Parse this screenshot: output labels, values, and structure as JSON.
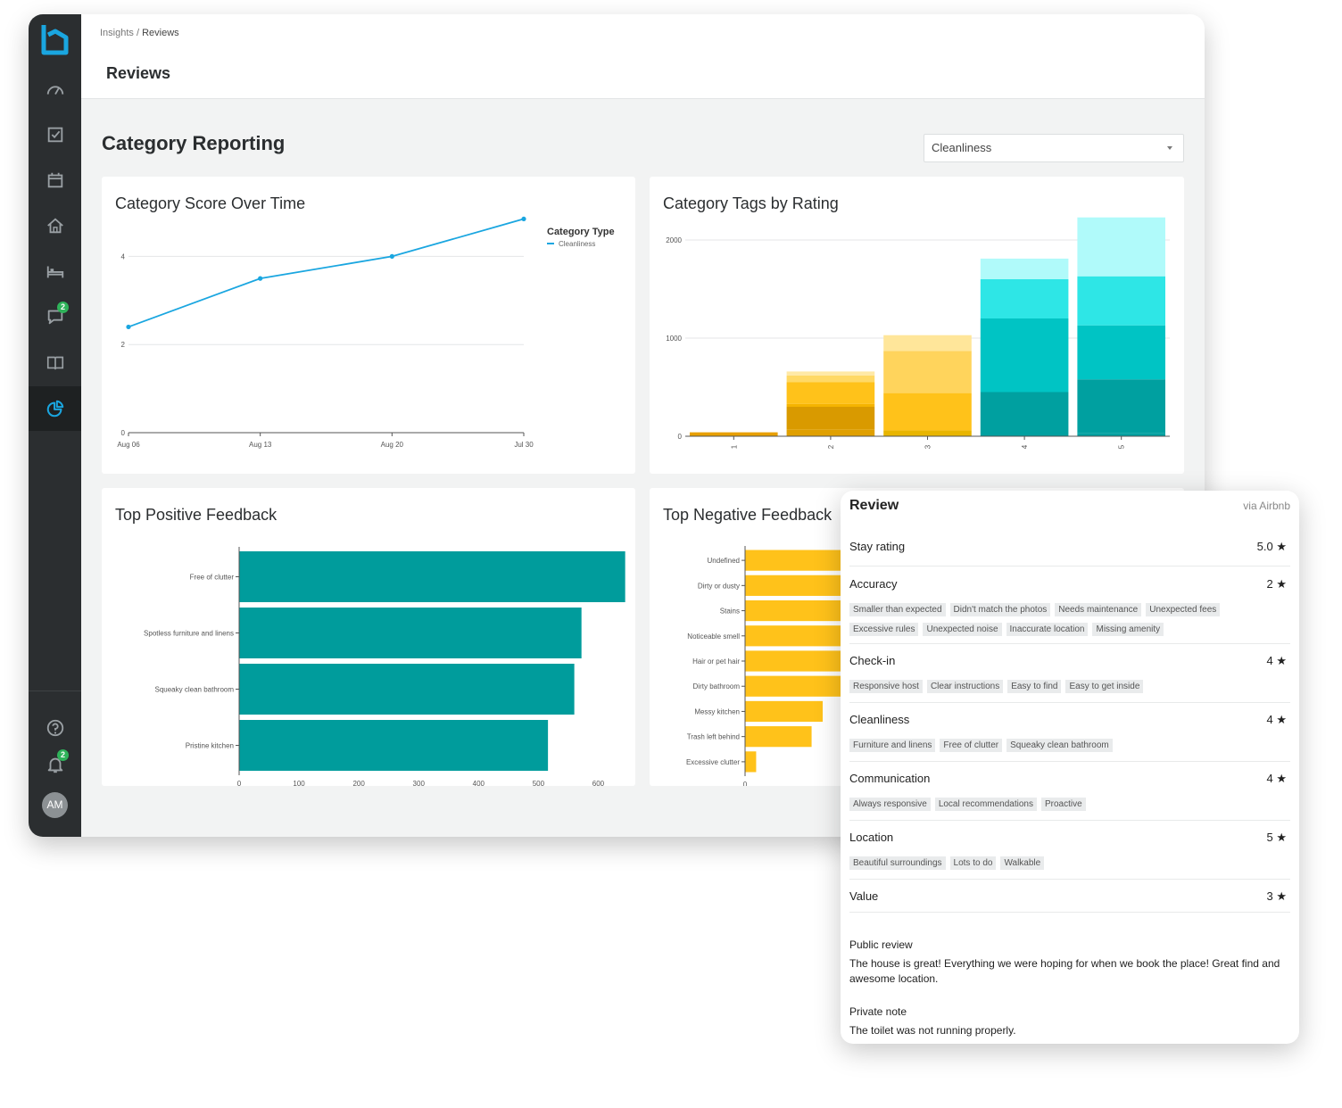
{
  "breadcrumb": {
    "parent": "Insights",
    "separator": " / ",
    "current": "Reviews"
  },
  "page_title": "Reviews",
  "section_title": "Category Reporting",
  "category_select": {
    "value": "Cleanliness"
  },
  "sidebar": {
    "icons": [
      "logo",
      "dashboard-gauge-icon",
      "tasks-checkbox-icon",
      "calendar-icon",
      "home-icon",
      "bed-icon",
      "messages-icon",
      "guidebook-icon",
      "insights-pie-icon",
      "help-icon",
      "notifications-bell-icon"
    ],
    "messages_badge": "2",
    "notifications_badge": "2",
    "avatar_initials": "AM"
  },
  "colors": {
    "accent": "#1aa6e0",
    "teal": "#009c9c",
    "amber": "#ffc21a",
    "sidebar": "#2b2e30"
  },
  "score_chart": {
    "title": "Category Score Over Time",
    "chart_data": {
      "type": "line",
      "x": [
        "Aug 06",
        "Aug 13",
        "Aug 20",
        "Jul 30"
      ],
      "series": [
        {
          "name": "Cleanliness",
          "values": [
            2.4,
            3.5,
            4.0,
            4.85
          ]
        }
      ],
      "yticks": [
        "0",
        "2",
        "4"
      ],
      "ylim": [
        0,
        5
      ],
      "legend_title": "Category Type",
      "legend_placement": "top-right"
    }
  },
  "tags_chart": {
    "title": "Category Tags by Rating",
    "chart_data": {
      "type": "bar",
      "stacked": true,
      "categories": [
        "1",
        "2",
        "3",
        "4",
        "5"
      ],
      "yticks": [
        "0",
        "1000",
        "2000"
      ],
      "ylim": [
        0,
        2200
      ],
      "segments": [
        [
          40,
          70,
          60,
          50,
          30
        ],
        [
          0,
          230,
          0,
          0,
          0
        ],
        [
          0,
          30,
          380,
          400,
          550
        ],
        [
          0,
          220,
          430,
          750,
          550
        ],
        [
          0,
          70,
          0,
          400,
          500
        ],
        [
          0,
          40,
          160,
          210,
          600
        ]
      ],
      "segment_colors": [
        [
          "#e8a000",
          "#e0a000",
          "#e8b500",
          "#00a0a0",
          "#00a0a0"
        ],
        [
          "#f0a300",
          "#d99a00",
          "#ffc21a",
          "#00a6a6",
          "#00a6a6"
        ],
        [
          "#ffb800",
          "#f5b400",
          "#ffc21a",
          "#00a0a0",
          "#00a0a0"
        ],
        [
          "#ffc933",
          "#ffc21a",
          "#ffd45c",
          "#00c4c4",
          "#00c4c4"
        ],
        [
          "#ffd45c",
          "#ffd966",
          "#ffd45c",
          "#2ee6e6",
          "#2ee6e6"
        ],
        [
          "#ffe08a",
          "#ffe9a6",
          "#ffe69a",
          "#b0fafa",
          "#b0fafa"
        ]
      ]
    }
  },
  "positive_chart": {
    "title": "Top Positive Feedback",
    "chart_data": {
      "type": "bar",
      "orientation": "horizontal",
      "categories": [
        "Free of clutter",
        "Spotless furniture and linens",
        "Squeaky clean bathroom",
        "Pristine kitchen"
      ],
      "values": [
        645,
        572,
        560,
        516
      ],
      "xticks": [
        "0",
        "100",
        "200",
        "300",
        "400",
        "500",
        "600"
      ],
      "xlim": [
        0,
        650
      ]
    }
  },
  "negative_chart": {
    "title": "Top Negative Feedback",
    "chart_data": {
      "type": "bar",
      "orientation": "horizontal",
      "categories": [
        "Undefined",
        "Dirty or dusty",
        "Stains",
        "Noticeable smell",
        "Hair or pet hair",
        "Dirty bathroom",
        "Messy kitchen",
        "Trash left behind",
        "Excessive clutter"
      ],
      "values": [
        14,
        13,
        13,
        11,
        10,
        9,
        7,
        6,
        1
      ],
      "xticks": [
        "0",
        "10"
      ],
      "xlim": [
        0,
        14
      ]
    }
  },
  "review": {
    "title": "Review",
    "source": "via Airbnb",
    "stay_rating": {
      "label": "Stay rating",
      "score": "5.0 ★"
    },
    "categories": [
      {
        "label": "Accuracy",
        "score": "2 ★",
        "tags": [
          "Smaller than expected",
          "Didn't match the photos",
          "Needs maintenance",
          "Unexpected fees",
          "Excessive rules",
          "Unexpected noise",
          "Inaccurate location",
          "Missing amenity"
        ]
      },
      {
        "label": "Check-in",
        "score": "4 ★",
        "tags": [
          "Responsive host",
          "Clear instructions",
          "Easy to find",
          "Easy to get inside"
        ]
      },
      {
        "label": "Cleanliness",
        "score": "4 ★",
        "tags": [
          "Furniture and linens",
          "Free of clutter",
          "Squeaky clean bathroom"
        ]
      },
      {
        "label": "Communication",
        "score": "4 ★",
        "tags": [
          "Always responsive",
          "Local recommendations",
          "Proactive"
        ]
      },
      {
        "label": "Location",
        "score": "5 ★",
        "tags": [
          "Beautiful surroundings",
          "Lots to do",
          "Walkable"
        ]
      },
      {
        "label": "Value",
        "score": "3 ★",
        "tags": []
      }
    ],
    "public_review": {
      "label": "Public review",
      "text": "The house is great! Everything we were hoping for when we book the place! Great find and awesome location."
    },
    "private_note": {
      "label": "Private note",
      "text": "The toilet was not running properly."
    }
  }
}
